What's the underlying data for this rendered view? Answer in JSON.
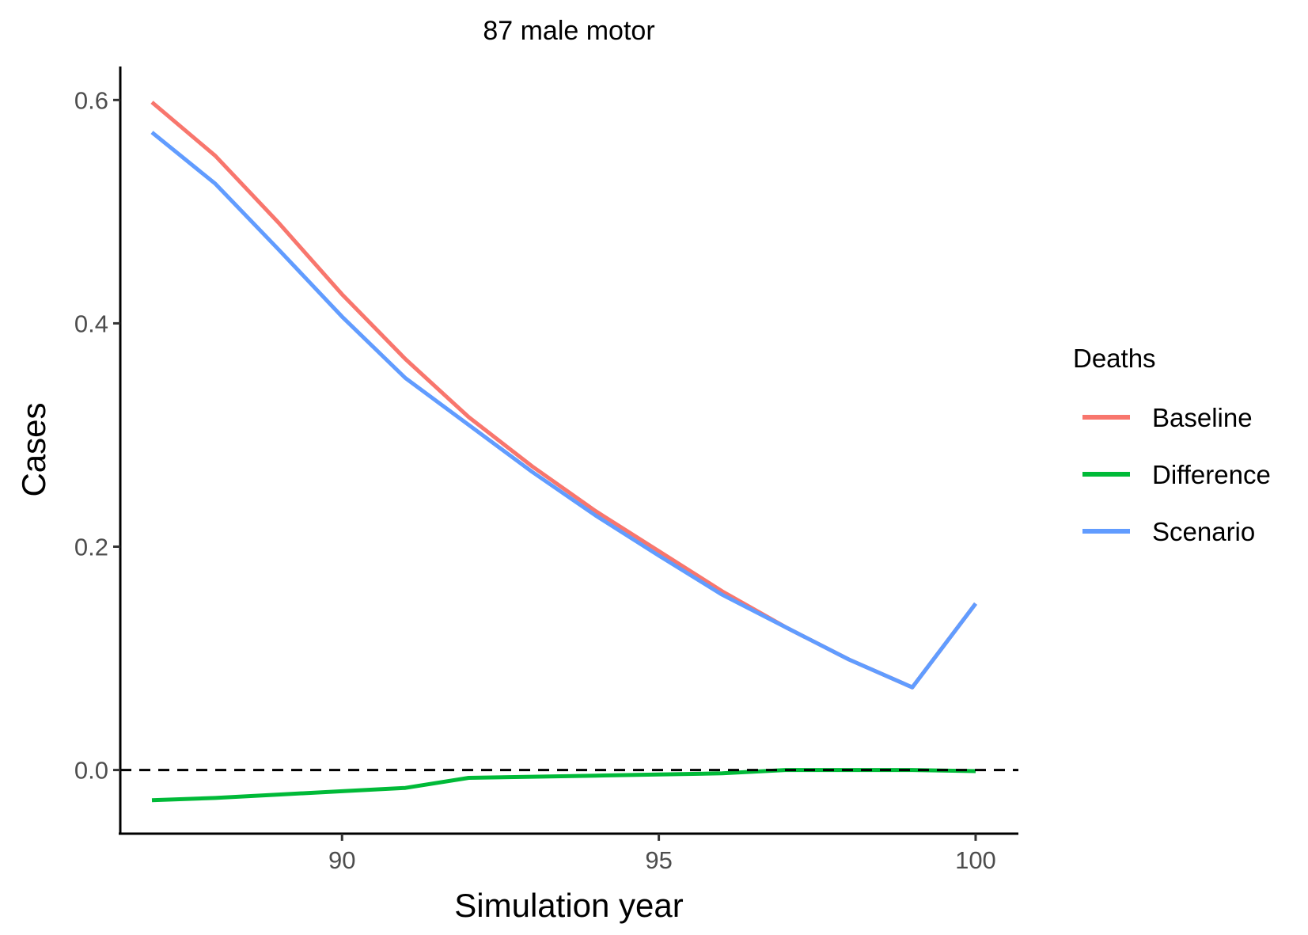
{
  "chart_data": {
    "type": "line",
    "title": "87 male motor",
    "xlabel": "Simulation year",
    "ylabel": "Cases",
    "xlim": [
      86.5,
      100.65
    ],
    "ylim": [
      -0.057,
      0.63
    ],
    "x_ticks": [
      90,
      95,
      100
    ],
    "y_ticks": [
      0.6,
      0.4,
      0.2,
      0.0
    ],
    "x_tick_labels": [
      "90",
      "95",
      "100"
    ],
    "y_tick_labels": [
      "0.6",
      "0.4",
      "0.2",
      "0.0"
    ],
    "reference_line": {
      "y": 0.0,
      "style": "dashed",
      "color": "#000000"
    },
    "grid": false,
    "legend": {
      "title": "Deaths",
      "placement": "right"
    },
    "series": [
      {
        "name": "Baseline",
        "color": "#F8766D",
        "x": [
          87,
          88,
          89,
          90,
          91,
          92,
          93,
          94,
          95,
          96,
          97,
          98,
          99,
          100
        ],
        "y": [
          0.598,
          0.55,
          0.49,
          0.426,
          0.368,
          0.316,
          0.272,
          0.232,
          0.196,
          0.16,
          0.128,
          0.099,
          0.074,
          0.149
        ]
      },
      {
        "name": "Difference",
        "color": "#00BA38",
        "x": [
          87,
          88,
          89,
          90,
          91,
          92,
          93,
          94,
          95,
          96,
          97,
          98,
          99,
          100
        ],
        "y": [
          -0.027,
          -0.025,
          -0.022,
          -0.019,
          -0.016,
          -0.007,
          -0.006,
          -0.005,
          -0.004,
          -0.003,
          0.0,
          0.0,
          0.0,
          -0.001
        ]
      },
      {
        "name": "Scenario",
        "color": "#619CFF",
        "x": [
          87,
          88,
          89,
          90,
          91,
          92,
          93,
          94,
          95,
          96,
          97,
          98,
          99,
          100
        ],
        "y": [
          0.571,
          0.525,
          0.466,
          0.406,
          0.351,
          0.309,
          0.267,
          0.228,
          0.192,
          0.157,
          0.128,
          0.099,
          0.074,
          0.149
        ]
      }
    ]
  }
}
